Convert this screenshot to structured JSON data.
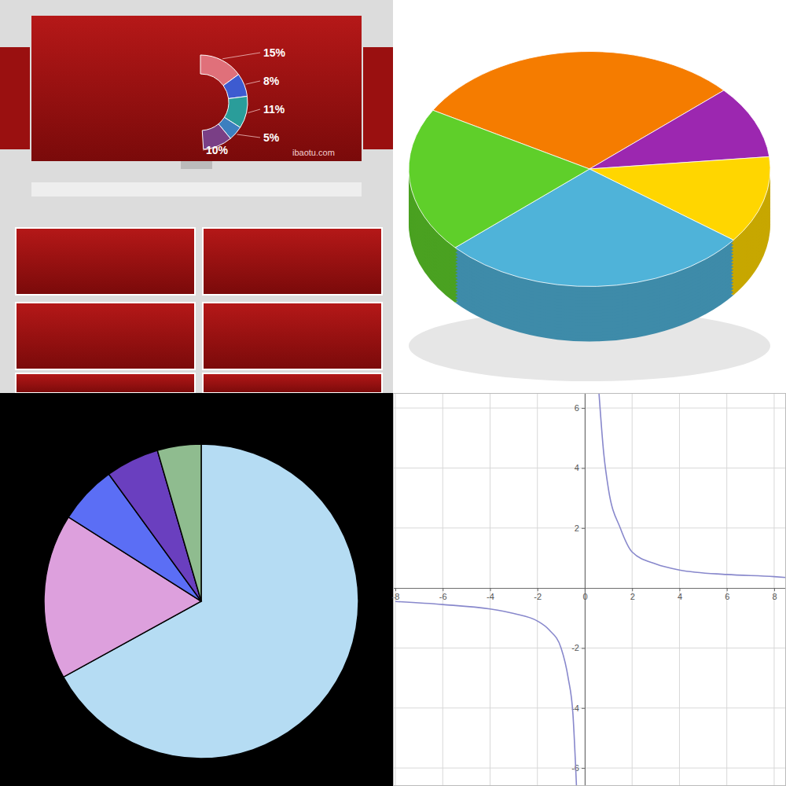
{
  "chart_data": [
    {
      "type": "donut",
      "values": [
        15,
        8,
        11,
        5,
        10
      ],
      "value_labels": [
        "15%",
        "8%",
        "11%",
        "5%",
        "10%"
      ],
      "data_labels": true,
      "colors": [
        "#e0707a",
        "#3d5bd0",
        "#2a9d9a",
        "#3d7fbf",
        "#7a3f86"
      ],
      "annotations": [
        "ibaotu.com"
      ]
    },
    {
      "type": "pie",
      "values": [
        30,
        10,
        12,
        28,
        20
      ],
      "colors": [
        "#f57c00",
        "#9c27b0",
        "#ffd600",
        "#4fb3d9",
        "#5fcf2a"
      ]
    },
    {
      "type": "pie",
      "values": [
        67,
        17,
        6,
        5.5,
        4.5
      ],
      "colors": [
        "#b5dcf3",
        "#dda0dd",
        "#5b6ef5",
        "#6a3fbf",
        "#8fbc8f"
      ]
    },
    {
      "type": "line",
      "x": [
        -8,
        -6,
        -4,
        -3,
        -2,
        -1.5,
        -1,
        -0.7,
        -0.5,
        -0.35,
        0,
        0.6,
        0.8,
        1,
        1.5,
        2,
        3,
        4,
        6,
        8,
        8.5
      ],
      "values": [
        -0.45,
        -0.55,
        -0.7,
        -0.85,
        -1.1,
        -1.4,
        -2,
        -3,
        -4.2,
        -6.6,
        null,
        6.5,
        4.5,
        3.3,
        2,
        1.2,
        0.8,
        0.6,
        0.45,
        0.38,
        0.35
      ],
      "color": "#8888cc",
      "xlim": [
        -8.1,
        8.5
      ],
      "ylim": [
        -6.6,
        6.5
      ],
      "xticks": [
        -8,
        -6,
        -4,
        -2,
        0,
        2,
        4,
        6,
        8
      ],
      "yticks": [
        -6,
        -4,
        -2,
        2,
        4,
        6
      ],
      "grid": true
    }
  ]
}
